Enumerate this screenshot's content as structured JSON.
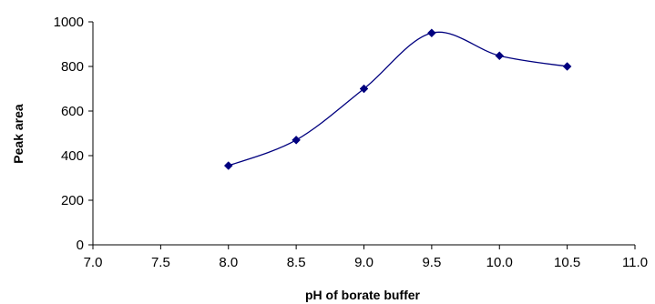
{
  "chart_data": {
    "type": "line",
    "title": "",
    "xlabel": "pH of borate buffer",
    "ylabel": "Peak area",
    "xlim": [
      7.0,
      11.0
    ],
    "ylim": [
      0,
      1000
    ],
    "x_ticks": [
      "7.0",
      "7.5",
      "8.0",
      "8.5",
      "9.0",
      "9.5",
      "10.0",
      "10.5",
      "11.0"
    ],
    "y_ticks": [
      "0",
      "200",
      "400",
      "600",
      "800",
      "1000"
    ],
    "grid": false,
    "legend": "none",
    "smooth": true,
    "series": [
      {
        "x": [
          8.0,
          8.5,
          9.0,
          9.5,
          10.0,
          10.5
        ],
        "values": [
          355,
          470,
          700,
          950,
          848,
          800
        ],
        "color": "#00007f",
        "marker": "diamond"
      }
    ]
  }
}
